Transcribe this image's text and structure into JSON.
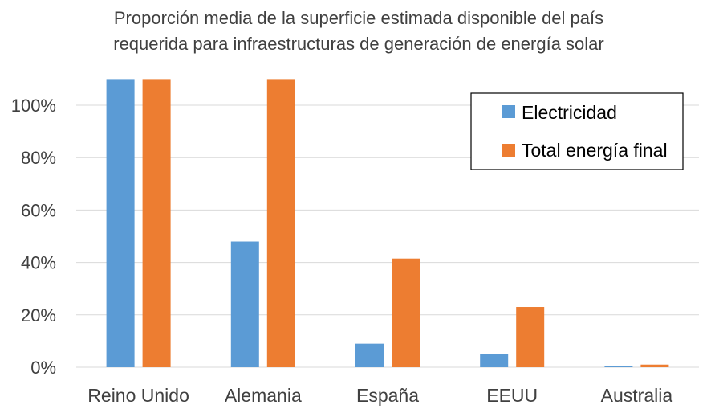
{
  "chart_data": {
    "type": "bar",
    "title_lines": [
      "Proporción media de la superficie estimada disponible del país",
      "requerida para infraestructuras de generación de energía solar"
    ],
    "categories": [
      "Reino Unido",
      "Alemania",
      "España",
      "EEUU",
      "Australia"
    ],
    "series": [
      {
        "name": "Electricidad",
        "color": "#5B9BD5",
        "values": [
          110,
          48,
          9,
          5,
          0.5
        ]
      },
      {
        "name": "Total energía final",
        "color": "#ED7D31",
        "values": [
          110,
          110,
          41.5,
          23,
          1
        ]
      }
    ],
    "ylim": [
      0,
      110
    ],
    "yticks": [
      0,
      20,
      40,
      60,
      80,
      100
    ],
    "ytick_labels": [
      "0%",
      "20%",
      "40%",
      "60%",
      "80%",
      "100%"
    ],
    "xlabel": "",
    "ylabel": "",
    "grid": true,
    "legend_position": "top-right",
    "colors": {
      "gridline": "#D9D9D9",
      "axis": "#D9D9D9",
      "text": "#404040",
      "legend_border": "#000000"
    }
  }
}
